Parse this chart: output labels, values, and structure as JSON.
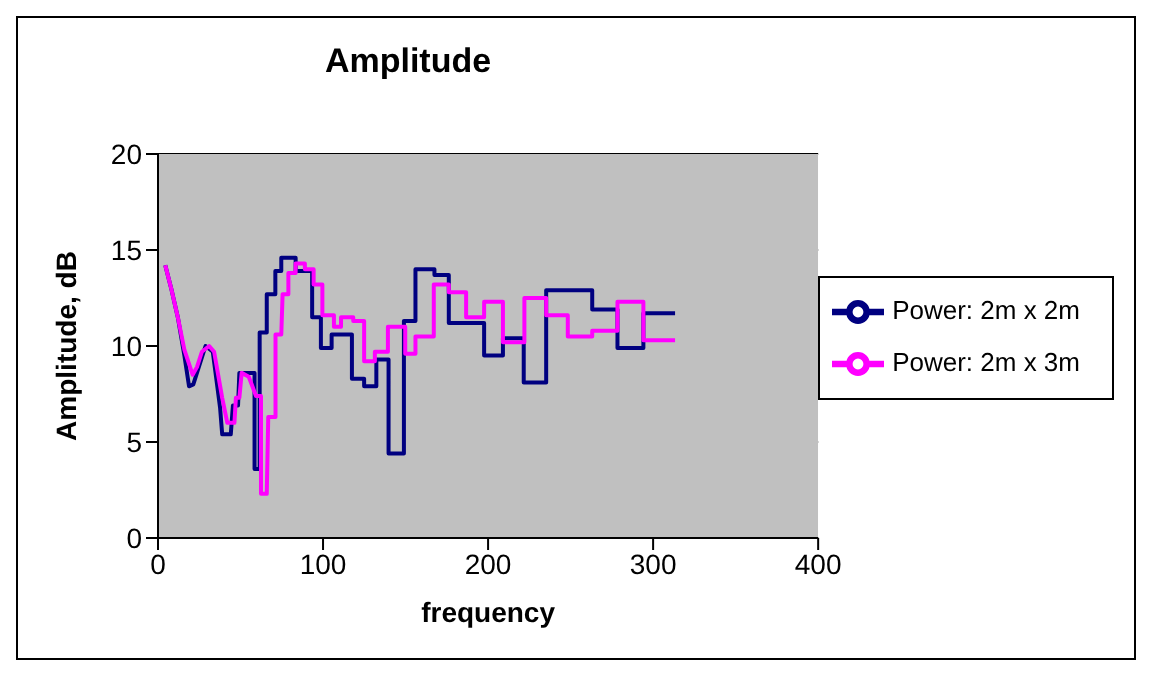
{
  "chart_data": {
    "type": "line",
    "title": "Amplitude",
    "xlabel": "frequency",
    "ylabel": "Amplitude, dB",
    "xlim": [
      0,
      400
    ],
    "xticks": [
      0,
      100,
      200,
      300,
      400
    ],
    "ylim": [
      0,
      20
    ],
    "yticks": [
      0,
      5,
      10,
      15,
      20
    ],
    "grid": "y",
    "legend": "right",
    "marker": "none",
    "line_style": "solid",
    "series": [
      {
        "name": "Power: 2m x 2m",
        "color": "#000080",
        "x": [
          4.4,
          8,
          12,
          16,
          18.8,
          21.4,
          23.6,
          28.8,
          33.2,
          37.6,
          38.9,
          44.1,
          45.4,
          48.5,
          49.3,
          52.8,
          58.5,
          58.5,
          61.6,
          61.6,
          65.9,
          65.9,
          71.1,
          71.1,
          74.7,
          74.7,
          79,
          79,
          83.4,
          83.4,
          93.4,
          93.4,
          98.7,
          98.7,
          105.2,
          105.2,
          117.5,
          117.5,
          124.9,
          124.9,
          132.3,
          132.3,
          139.7,
          139.7,
          149,
          149,
          156,
          156,
          167.5,
          167.5,
          176.2,
          176.2,
          186.7,
          186.7,
          197.6,
          197.6,
          209,
          209,
          221.6,
          221.6,
          235.2,
          235.2,
          263.1,
          263.1,
          278.4,
          278.4,
          294.1,
          294.1,
          313.3
        ],
        "values": [
          14.2,
          13,
          11.5,
          9.5,
          7.9,
          8,
          8.6,
          10,
          9.7,
          6.8,
          5.4,
          5.4,
          6.9,
          6.9,
          8.6,
          8.6,
          8.6,
          3.6,
          3.6,
          10.7,
          10.7,
          12.7,
          12.7,
          13.9,
          13.9,
          14.6,
          14.6,
          14.6,
          14.6,
          13.9,
          13.9,
          11.5,
          11.5,
          9.9,
          9.9,
          10.6,
          10.6,
          8.3,
          8.3,
          7.9,
          7.9,
          9.3,
          9.3,
          4.4,
          4.4,
          11.3,
          11.3,
          14,
          14,
          13.7,
          13.7,
          11.2,
          11.2,
          11.2,
          11.2,
          9.5,
          9.5,
          10.4,
          10.4,
          8.1,
          8.1,
          12.9,
          12.9,
          11.9,
          11.9,
          9.9,
          9.9,
          11.7,
          11.7
        ]
      },
      {
        "name": "Power: 2m x 3m",
        "color": "#ff00ff",
        "x": [
          4.4,
          8,
          12,
          16,
          21,
          23.6,
          26.6,
          31,
          34,
          38.9,
          42,
          46.3,
          47.2,
          49.3,
          50.7,
          55,
          59.4,
          62.4,
          62.4,
          65.9,
          66.8,
          71.2,
          71.2,
          74.7,
          75.5,
          79,
          79,
          83.4,
          83.4,
          89,
          89,
          94.3,
          94.3,
          99.6,
          99.6,
          106.6,
          106.6,
          110.9,
          110.9,
          118.3,
          118.3,
          124.9,
          124.9,
          131.4,
          131.4,
          139.3,
          139.3,
          149.8,
          149.8,
          156,
          156,
          167.1,
          167.1,
          176.2,
          176.2,
          186.7,
          186.7,
          197.6,
          197.6,
          209,
          209,
          222,
          222,
          235.2,
          235.2,
          248.3,
          248.3,
          263.1,
          263.1,
          278.4,
          278.4,
          294.1,
          294.1,
          313.3
        ],
        "values": [
          14.2,
          13,
          11.5,
          9.8,
          8.5,
          8.9,
          9.7,
          10,
          9.7,
          7.3,
          6,
          6,
          7.3,
          7.3,
          8.6,
          8.4,
          7.4,
          7.4,
          2.3,
          2.3,
          6.3,
          6.3,
          10.6,
          10.6,
          12.7,
          12.7,
          13.8,
          13.8,
          14.3,
          14.3,
          14,
          14,
          13.2,
          13.2,
          11.6,
          11.6,
          11,
          11,
          11.5,
          11.5,
          11.3,
          11.3,
          9.2,
          9.2,
          9.7,
          9.7,
          11,
          11,
          9.6,
          9.6,
          10.5,
          10.5,
          13.2,
          13.2,
          12.8,
          12.8,
          11.5,
          11.5,
          12.3,
          12.3,
          10.2,
          10.2,
          12.5,
          12.5,
          11.6,
          11.6,
          10.5,
          10.5,
          10.8,
          10.8,
          12.3,
          12.3,
          10.3,
          10.3
        ]
      }
    ]
  }
}
